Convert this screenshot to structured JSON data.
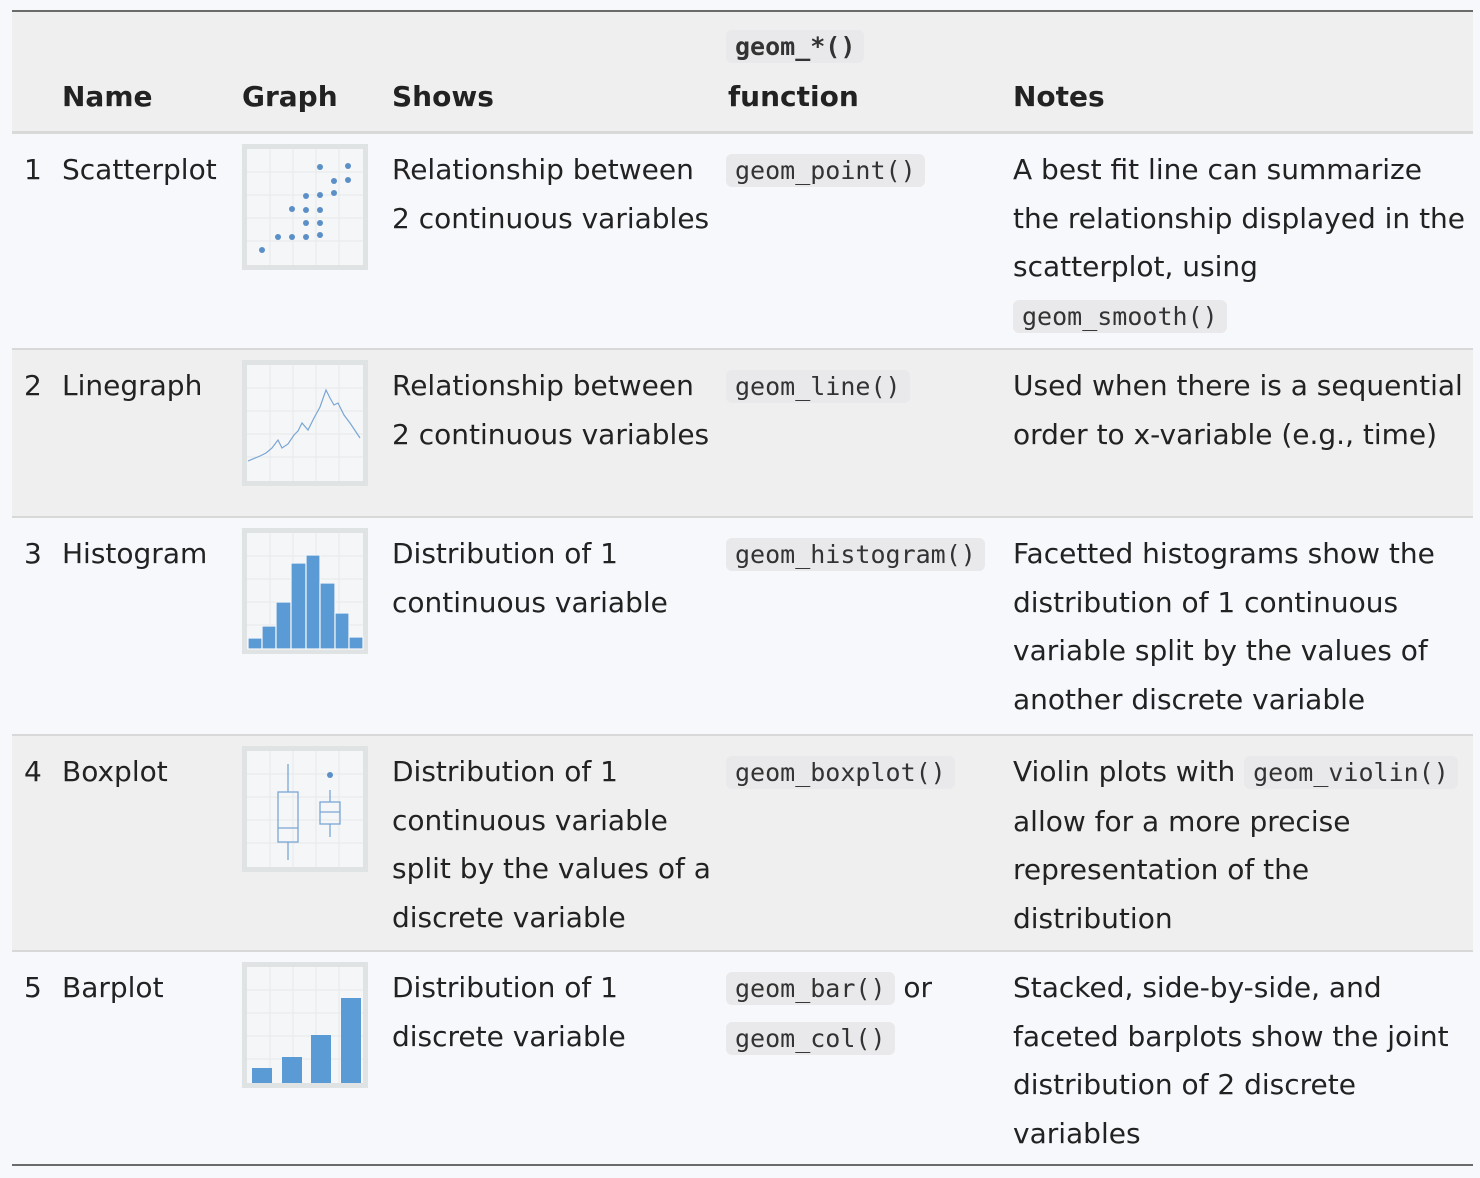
{
  "header": {
    "name": "Name",
    "graph": "Graph",
    "shows": "Shows",
    "function_code": "geom_*()",
    "function_label": "function",
    "notes": "Notes"
  },
  "rows": [
    {
      "num": "1",
      "name": "Scatterplot",
      "icon": "scatterplot-thumbnail",
      "shows": "Relationship between 2 continuous variables",
      "fn": "geom_point()",
      "notes_pre": "A best fit line can summarize the relationship displayed in the scatterplot, using",
      "notes_code": "geom_smooth()"
    },
    {
      "num": "2",
      "name": "Linegraph",
      "icon": "linegraph-thumbnail",
      "shows": "Relationship between 2 continuous variables",
      "fn": "geom_line()",
      "notes": "Used when there is a sequential order to x-variable (e.g., time)"
    },
    {
      "num": "3",
      "name": "Histogram",
      "icon": "histogram-thumbnail",
      "shows": "Distribution of 1 continuous variable",
      "fn": "geom_histogram()",
      "notes": "Facetted histograms show the distribution of 1 continuous variable split by the values of another discrete variable"
    },
    {
      "num": "4",
      "name": "Boxplot",
      "icon": "boxplot-thumbnail",
      "shows": "Distribution of 1 continuous variable split by the values of a discrete variable",
      "fn": "geom_boxplot()",
      "notes_pre": "Violin plots with",
      "notes_code": "geom_violin()",
      "notes_post": "allow for a more precise representation of the distribution"
    },
    {
      "num": "5",
      "name": "Barplot",
      "icon": "barplot-thumbnail",
      "shows": "Distribution of 1 discrete variable",
      "fn": "geom_bar()",
      "fn_or": "or",
      "fn2": "geom_col()",
      "notes": "Stacked, side-by-side, and faceted barplots show the joint distribution of 2 discrete variables"
    }
  ],
  "colors": {
    "accent": "#5b9bd5",
    "thumb_frame": "#dfe3e4",
    "header_bg": "#efefef"
  }
}
